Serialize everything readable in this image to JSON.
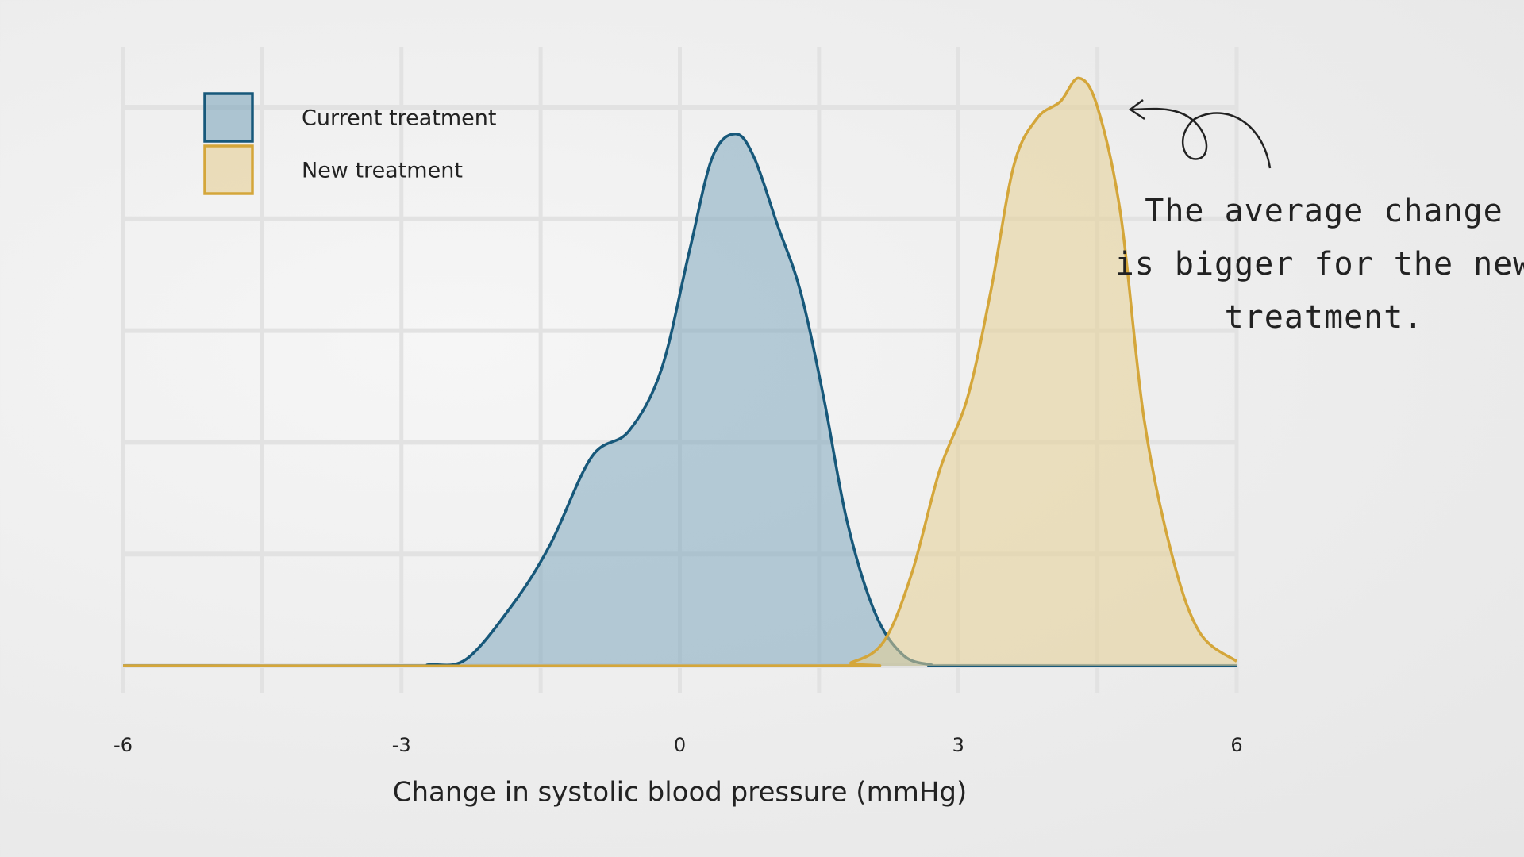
{
  "chart_data": {
    "type": "density",
    "x_label": "Change in systolic blood pressure (mmHg)",
    "annotation": [
      "The average change",
      "is bigger for the new",
      "treatment."
    ],
    "xlim": [
      -6,
      6
    ],
    "xticks": [
      -6,
      -3,
      0,
      3,
      6
    ],
    "x_grid": [
      -6,
      -4.5,
      -3,
      -1.5,
      0,
      1.5,
      3,
      4.5,
      6
    ],
    "ylim": [
      0,
      0.55
    ],
    "y_grid": [
      0,
      0.1,
      0.2,
      0.3,
      0.4,
      0.5
    ],
    "grid": true,
    "legend": "upper left",
    "series": [
      {
        "name": "Current treatment",
        "color": "#17587a",
        "fill": "#7fa7bd",
        "x": [
          -6,
          -3,
          -2.7,
          -2.3,
          -1.8,
          -1.4,
          -0.95,
          -0.55,
          -0.2,
          0.1,
          0.35,
          0.6,
          0.8,
          1.05,
          1.3,
          1.55,
          1.8,
          2.1,
          2.4,
          2.7,
          3,
          6
        ],
        "values": [
          0,
          0,
          0.001,
          0.006,
          0.055,
          0.108,
          0.187,
          0.21,
          0.265,
          0.37,
          0.455,
          0.476,
          0.455,
          0.395,
          0.335,
          0.24,
          0.13,
          0.048,
          0.01,
          0.001,
          0,
          0
        ]
      },
      {
        "name": "New treatment",
        "color": "#d4a63a",
        "fill": "#e6cf94",
        "x": [
          -6,
          1.5,
          1.85,
          2.2,
          2.5,
          2.8,
          3.1,
          3.35,
          3.6,
          3.85,
          4.1,
          4.3,
          4.5,
          4.75,
          5.0,
          5.3,
          5.6,
          6
        ],
        "values": [
          0,
          0,
          0.003,
          0.022,
          0.083,
          0.175,
          0.24,
          0.335,
          0.448,
          0.49,
          0.505,
          0.526,
          0.5,
          0.404,
          0.222,
          0.1,
          0.03,
          0.004
        ]
      }
    ]
  }
}
